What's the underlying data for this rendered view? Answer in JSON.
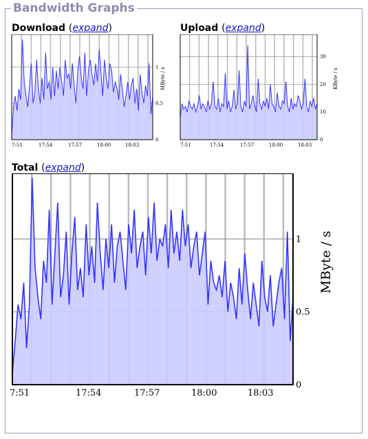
{
  "panel": {
    "title": "Bandwidth Graphs"
  },
  "sections": {
    "download": {
      "label": "Download",
      "link": "expand"
    },
    "upload": {
      "label": "Upload",
      "link": "expand"
    },
    "total": {
      "label": "Total",
      "link": "expand"
    }
  },
  "colors": {
    "fill": "#ccccff",
    "line": "#3333ff",
    "grid": "#bbbbbb",
    "border": "#000000",
    "legend": "#8c8cb4"
  },
  "chart_data": [
    {
      "type": "area",
      "ylabel": "MByte / s",
      "x_ticks": [
        "7:51",
        "17:54",
        "17:57",
        "18:00",
        "18:03"
      ],
      "y_ticks": [
        "1",
        "0.5",
        "0"
      ],
      "ylim": [
        0,
        1.45
      ],
      "x": [
        0,
        1,
        2,
        3,
        4,
        5,
        6,
        7,
        8,
        9,
        10,
        11,
        12,
        13,
        14,
        15,
        16,
        17,
        18,
        19,
        20,
        21,
        22,
        23,
        24,
        25,
        26,
        27,
        28,
        29,
        30,
        31,
        32,
        33,
        34,
        35,
        36,
        37,
        38,
        39,
        40,
        41,
        42,
        43,
        44,
        45,
        46,
        47,
        48,
        49,
        50,
        51,
        52,
        53,
        54,
        55,
        56,
        57,
        58,
        59,
        60,
        61,
        62,
        63,
        64,
        65,
        66,
        67,
        68,
        69,
        70,
        71,
        72,
        73,
        74,
        75,
        76,
        77,
        78,
        79
      ],
      "values": [
        0.05,
        0.45,
        0.6,
        0.4,
        0.7,
        0.55,
        1.38,
        0.8,
        0.6,
        0.45,
        0.75,
        1.05,
        0.5,
        0.65,
        1.1,
        0.7,
        0.5,
        0.85,
        0.55,
        1.2,
        0.7,
        0.8,
        0.55,
        1.0,
        0.6,
        0.95,
        0.7,
        1.0,
        0.8,
        0.6,
        1.1,
        0.85,
        0.9,
        0.7,
        1.05,
        0.75,
        0.5,
        0.95,
        1.15,
        0.85,
        0.7,
        1.2,
        0.6,
        0.95,
        1.1,
        0.9,
        0.75,
        1.05,
        0.8,
        1.25,
        0.95,
        0.6,
        1.1,
        0.85,
        0.7,
        1.05,
        0.95,
        0.65,
        0.8,
        0.7,
        0.55,
        0.9,
        0.7,
        0.45,
        0.6,
        0.8,
        0.55,
        0.75,
        0.85,
        0.5,
        0.7,
        0.4,
        0.9,
        0.65,
        0.5,
        0.75,
        0.6,
        1.05,
        0.35,
        0.6
      ]
    },
    {
      "type": "area",
      "ylabel": "KByte / s",
      "x_ticks": [
        "7:51",
        "17:54",
        "17:57",
        "18:00",
        "18:03"
      ],
      "y_ticks": [
        "30",
        "20",
        "10",
        "0"
      ],
      "ylim": [
        0,
        38
      ],
      "x": [
        0,
        1,
        2,
        3,
        4,
        5,
        6,
        7,
        8,
        9,
        10,
        11,
        12,
        13,
        14,
        15,
        16,
        17,
        18,
        19,
        20,
        21,
        22,
        23,
        24,
        25,
        26,
        27,
        28,
        29,
        30,
        31,
        32,
        33,
        34,
        35,
        36,
        37,
        38,
        39,
        40,
        41,
        42,
        43,
        44,
        45,
        46,
        47,
        48,
        49,
        50,
        51,
        52,
        53,
        54,
        55,
        56,
        57,
        58,
        59,
        60,
        61,
        62,
        63,
        64,
        65,
        66,
        67,
        68,
        69,
        70,
        71,
        72,
        73,
        74,
        75,
        76,
        77,
        78,
        79
      ],
      "values": [
        8,
        13,
        11,
        12,
        10,
        14,
        12,
        11,
        13,
        10,
        12,
        16,
        11,
        13,
        12,
        10,
        14,
        11,
        13,
        21,
        12,
        11,
        15,
        10,
        13,
        12,
        24,
        11,
        14,
        10,
        12,
        18,
        11,
        13,
        25,
        12,
        10,
        14,
        12,
        34,
        11,
        13,
        16,
        12,
        10,
        22,
        13,
        11,
        14,
        12,
        15,
        11,
        20,
        13,
        12,
        10,
        17,
        12,
        11,
        14,
        13,
        21,
        12,
        10,
        15,
        11,
        13,
        12,
        16,
        14,
        11,
        13,
        22,
        12,
        10,
        14,
        12,
        15,
        11,
        13
      ]
    },
    {
      "type": "area",
      "ylabel": "MByte / s",
      "x_ticks": [
        "7:51",
        "17:54",
        "17:57",
        "18:00",
        "18:03"
      ],
      "y_ticks": [
        "1",
        "0.5",
        "0"
      ],
      "ylim": [
        0,
        1.45
      ],
      "x": [
        0,
        1,
        2,
        3,
        4,
        5,
        6,
        7,
        8,
        9,
        10,
        11,
        12,
        13,
        14,
        15,
        16,
        17,
        18,
        19,
        20,
        21,
        22,
        23,
        24,
        25,
        26,
        27,
        28,
        29,
        30,
        31,
        32,
        33,
        34,
        35,
        36,
        37,
        38,
        39,
        40,
        41,
        42,
        43,
        44,
        45,
        46,
        47,
        48,
        49,
        50,
        51,
        52,
        53,
        54,
        55,
        56,
        57,
        58,
        59,
        60,
        61,
        62,
        63,
        64,
        65,
        66,
        67,
        68,
        69,
        70,
        71,
        72,
        73,
        74,
        75,
        76,
        77,
        78,
        79,
        80,
        81,
        82,
        83,
        84,
        85,
        86,
        87,
        88,
        89,
        90,
        91,
        92,
        93,
        94,
        95,
        96,
        97,
        98,
        99
      ],
      "values": [
        0.08,
        0.3,
        0.55,
        0.45,
        0.7,
        0.25,
        0.55,
        1.42,
        0.8,
        0.6,
        0.45,
        0.85,
        0.7,
        1.2,
        0.55,
        0.9,
        1.25,
        0.6,
        0.75,
        1.05,
        0.55,
        0.9,
        1.15,
        0.65,
        0.8,
        0.6,
        1.1,
        0.75,
        0.95,
        0.7,
        1.25,
        0.9,
        0.65,
        1.0,
        0.8,
        1.1,
        0.7,
        0.95,
        1.05,
        0.85,
        0.65,
        1.1,
        0.9,
        1.2,
        0.8,
        0.95,
        1.05,
        0.75,
        1.15,
        0.9,
        1.25,
        0.85,
        1.0,
        0.95,
        1.1,
        0.8,
        1.2,
        0.9,
        1.05,
        0.85,
        1.2,
        0.95,
        1.1,
        0.8,
        0.95,
        1.05,
        0.75,
        0.9,
        1.05,
        0.55,
        0.85,
        0.7,
        0.65,
        0.75,
        0.6,
        0.85,
        0.5,
        0.7,
        0.6,
        0.45,
        0.8,
        0.55,
        0.9,
        0.65,
        0.45,
        0.7,
        0.55,
        0.4,
        0.85,
        0.6,
        0.5,
        0.75,
        0.4,
        0.55,
        0.7,
        0.8,
        0.45,
        1.05,
        0.3,
        0.6
      ]
    }
  ]
}
